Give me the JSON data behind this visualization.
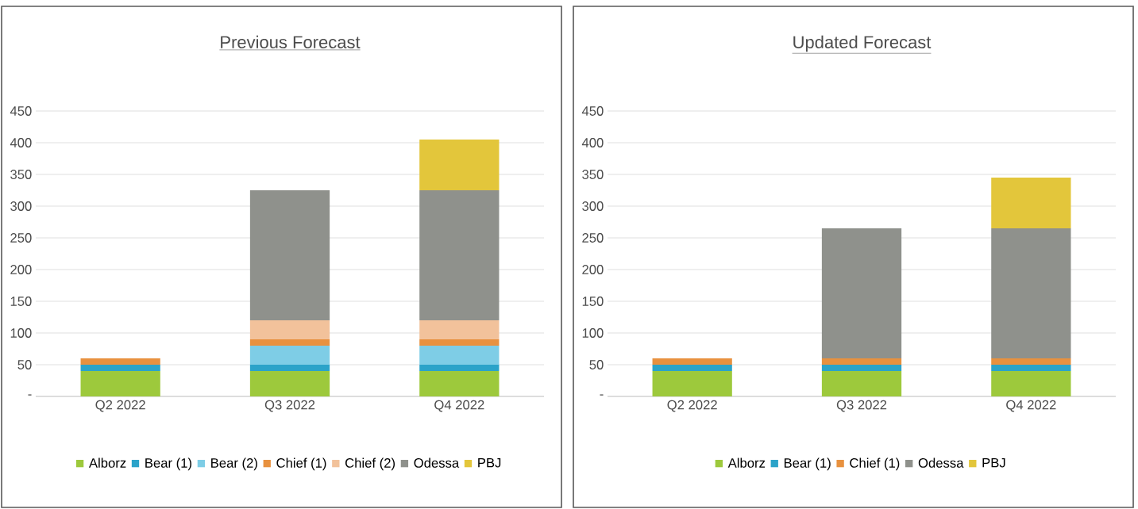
{
  "chart_data": [
    {
      "type": "bar",
      "title": "Previous Forecast",
      "categories": [
        "Q2 2022",
        "Q3 2022",
        "Q4 2022"
      ],
      "stacked": true,
      "ylim": [
        0,
        450
      ],
      "yticks": [
        {
          "value": 0,
          "label": "-"
        },
        50,
        100,
        150,
        200,
        250,
        300,
        350,
        400,
        450
      ],
      "grid": "y",
      "legend": "bottom",
      "series": [
        {
          "name": "Alborz",
          "color": "#9dc93c",
          "values": [
            40,
            40,
            40
          ]
        },
        {
          "name": "Bear (1)",
          "color": "#2ba3c9",
          "values": [
            10,
            10,
            10
          ]
        },
        {
          "name": "Bear (2)",
          "color": "#7ecde6",
          "values": [
            null,
            30,
            30
          ]
        },
        {
          "name": "Chief (1)",
          "color": "#e8913f",
          "values": [
            10,
            10,
            10
          ]
        },
        {
          "name": "Chief (2)",
          "color": "#f2c29b",
          "values": [
            null,
            30,
            30
          ]
        },
        {
          "name": "Odessa",
          "color": "#8f918c",
          "values": [
            null,
            205,
            205
          ]
        },
        {
          "name": "PBJ",
          "color": "#e3c63b",
          "values": [
            null,
            null,
            80
          ]
        }
      ]
    },
    {
      "type": "bar",
      "title": "Updated Forecast",
      "categories": [
        "Q2 2022",
        "Q3 2022",
        "Q4 2022"
      ],
      "stacked": true,
      "ylim": [
        0,
        450
      ],
      "yticks": [
        {
          "value": 0,
          "label": "-"
        },
        50,
        100,
        150,
        200,
        250,
        300,
        350,
        400,
        450
      ],
      "grid": "y",
      "legend": "bottom",
      "series": [
        {
          "name": "Alborz",
          "color": "#9dc93c",
          "values": [
            40,
            40,
            40
          ]
        },
        {
          "name": "Bear (1)",
          "color": "#2ba3c9",
          "values": [
            10,
            10,
            10
          ]
        },
        {
          "name": "Chief (1)",
          "color": "#e8913f",
          "values": [
            10,
            10,
            10
          ]
        },
        {
          "name": "Odessa",
          "color": "#8f918c",
          "values": [
            null,
            205,
            205
          ]
        },
        {
          "name": "PBJ",
          "color": "#e3c63b",
          "values": [
            null,
            null,
            80
          ]
        }
      ]
    }
  ]
}
